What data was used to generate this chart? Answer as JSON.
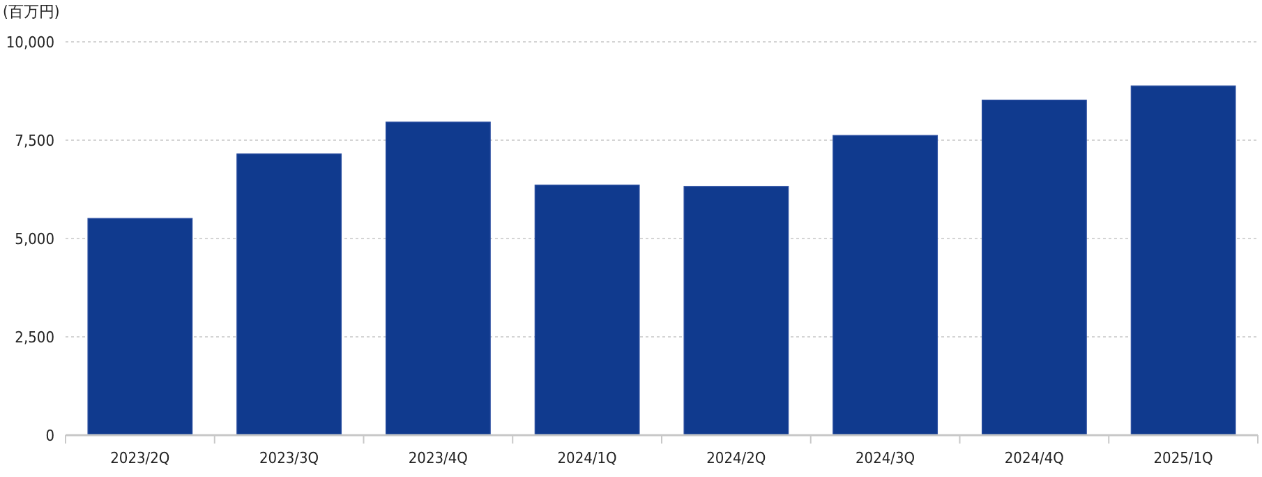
{
  "chart_data": {
    "type": "bar",
    "ylabel": "(百万円)",
    "categories": [
      "2023/2Q",
      "2023/3Q",
      "2023/4Q",
      "2024/1Q",
      "2024/2Q",
      "2024/3Q",
      "2024/4Q",
      "2025/1Q"
    ],
    "values": [
      5510,
      7150,
      7960,
      6360,
      6320,
      7620,
      8520,
      8880
    ],
    "color": "#103a8e",
    "ylim": [
      0,
      10000
    ],
    "yticks": [
      {
        "value": 0,
        "label": "0"
      },
      {
        "value": 2500,
        "label": "2,500"
      },
      {
        "value": 5000,
        "label": "5,000"
      },
      {
        "value": 7500,
        "label": "7,500"
      },
      {
        "value": 10000,
        "label": "10,000"
      }
    ],
    "grid": "y"
  }
}
